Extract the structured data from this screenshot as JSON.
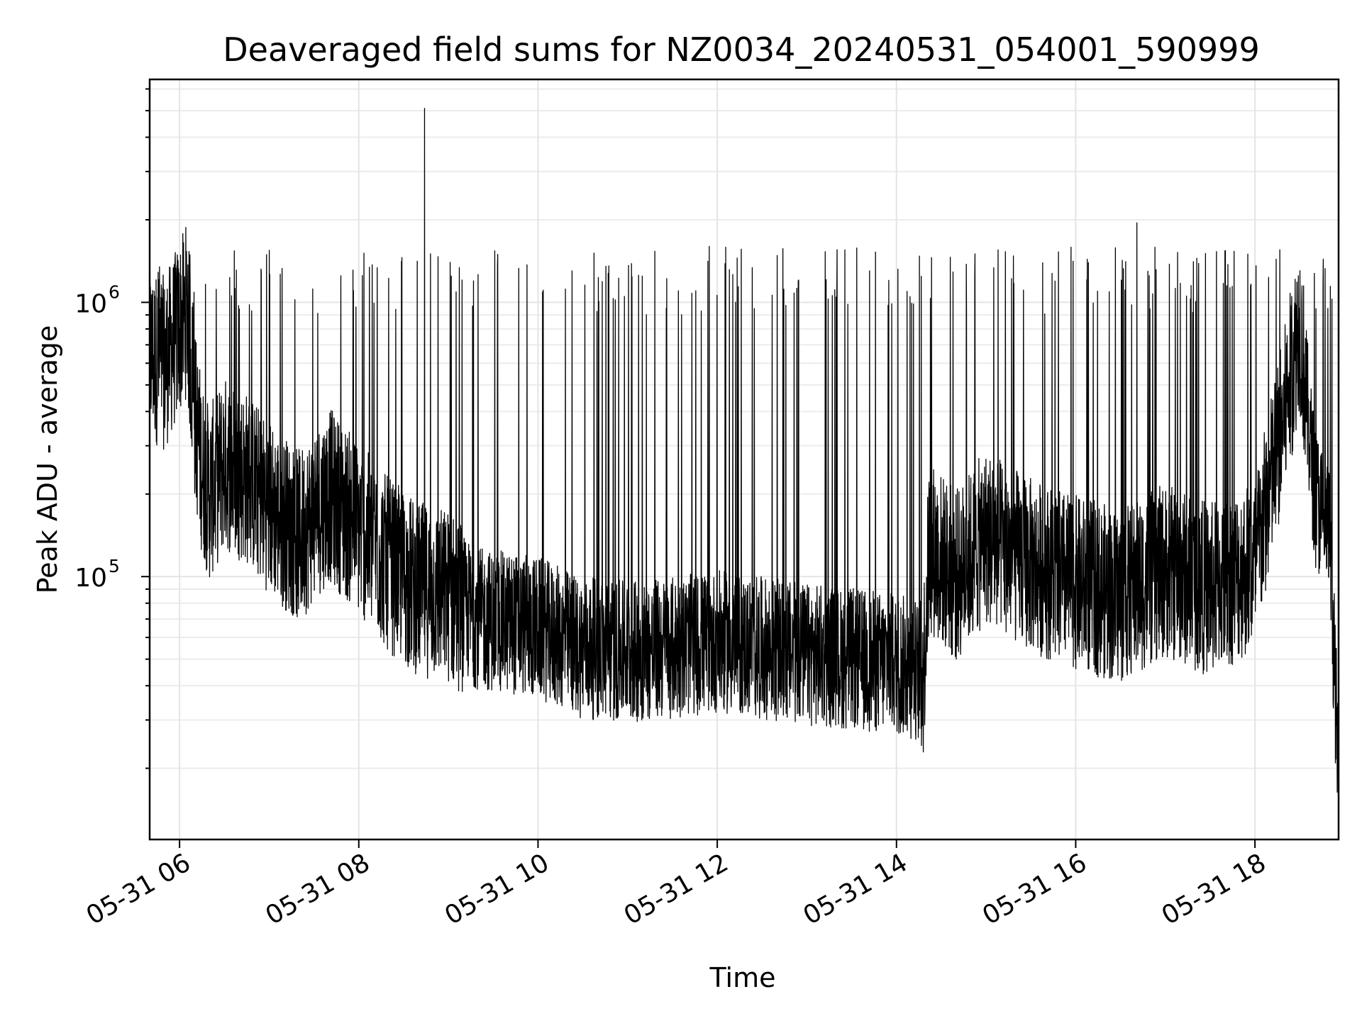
{
  "chart_data": {
    "type": "line",
    "title": "Deaveraged field sums for NZ0034_20240531_054001_590999",
    "xlabel": "Time",
    "ylabel": "Peak ADU - average",
    "x_scale": "time",
    "y_scale": "log",
    "xlim": [
      "2024-05-31T05:40:00",
      "2024-05-31T18:56:00"
    ],
    "ylim": [
      11000,
      6500000
    ],
    "grid": true,
    "x_ticks": [
      {
        "value": "2024-05-31T06:00:00",
        "label": "05-31 06"
      },
      {
        "value": "2024-05-31T08:00:00",
        "label": "05-31 08"
      },
      {
        "value": "2024-05-31T10:00:00",
        "label": "05-31 10"
      },
      {
        "value": "2024-05-31T12:00:00",
        "label": "05-31 12"
      },
      {
        "value": "2024-05-31T14:00:00",
        "label": "05-31 14"
      },
      {
        "value": "2024-05-31T16:00:00",
        "label": "05-31 16"
      },
      {
        "value": "2024-05-31T18:00:00",
        "label": "05-31 18"
      }
    ],
    "y_ticks": [
      {
        "value": 100000,
        "base": "10",
        "exp": "5"
      },
      {
        "value": 1000000,
        "base": "10",
        "exp": "6"
      }
    ],
    "series": [
      {
        "color": "#000000",
        "x": [
          "2024-05-31T05:40:00",
          "2024-05-31T05:50:00",
          "2024-05-31T06:00:00",
          "2024-05-31T06:05:00",
          "2024-05-31T06:10:00",
          "2024-05-31T06:15:00",
          "2024-05-31T06:20:00",
          "2024-05-31T06:30:00",
          "2024-05-31T06:45:00",
          "2024-05-31T07:00:00",
          "2024-05-31T07:20:00",
          "2024-05-31T07:40:00",
          "2024-05-31T08:00:00",
          "2024-05-31T08:20:00",
          "2024-05-31T08:40:00",
          "2024-05-31T09:00:00",
          "2024-05-31T09:20:00",
          "2024-05-31T09:40:00",
          "2024-05-31T10:00:00",
          "2024-05-31T10:30:00",
          "2024-05-31T11:00:00",
          "2024-05-31T11:30:00",
          "2024-05-31T12:00:00",
          "2024-05-31T12:30:00",
          "2024-05-31T13:00:00",
          "2024-05-31T13:30:00",
          "2024-05-31T14:00:00",
          "2024-05-31T14:18:00",
          "2024-05-31T14:22:00",
          "2024-05-31T14:40:00",
          "2024-05-31T15:00:00",
          "2024-05-31T15:30:00",
          "2024-05-31T16:00:00",
          "2024-05-31T16:30:00",
          "2024-05-31T17:00:00",
          "2024-05-31T17:30:00",
          "2024-05-31T18:00:00",
          "2024-05-31T18:20:00",
          "2024-05-31T18:30:00",
          "2024-05-31T18:40:00",
          "2024-05-31T18:50:00",
          "2024-05-31T18:56:00"
        ],
        "y": [
          650000,
          600000,
          800000,
          950000,
          400000,
          250000,
          200000,
          260000,
          230000,
          180000,
          140000,
          200000,
          150000,
          110000,
          90000,
          85000,
          70000,
          68000,
          65000,
          55000,
          53000,
          55000,
          58000,
          55000,
          52000,
          50000,
          48000,
          45000,
          130000,
          100000,
          140000,
          110000,
          95000,
          85000,
          105000,
          90000,
          110000,
          400000,
          850000,
          200000,
          140000,
          18000
        ]
      }
    ],
    "annotations": [
      {
        "type": "spike",
        "x": "2024-05-31T08:44:00",
        "y": 5100000
      },
      {
        "type": "spike",
        "x": "2024-05-31T16:41:00",
        "y": 1950000
      }
    ]
  }
}
